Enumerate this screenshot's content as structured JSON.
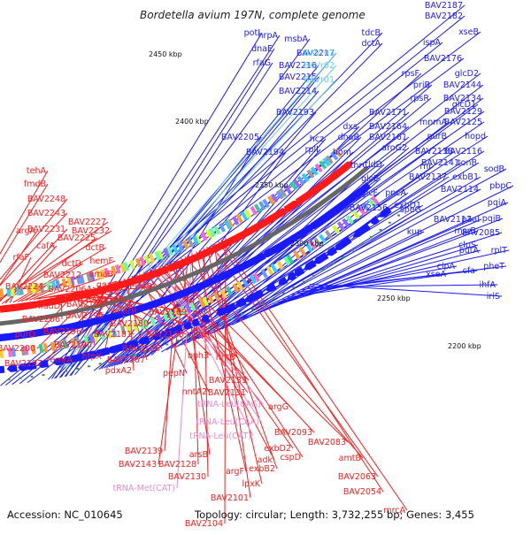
{
  "title": "Bordetella avium 197N, complete genome",
  "footer": {
    "accession": "Accession: NC_010645",
    "topology": "Topology: circular; Length: 3,732,255 bp; Genes: 3,455"
  },
  "colors": {
    "forward": "#1a1aff",
    "reverse": "#ff1a1a",
    "rna": "#66ccee",
    "trna": "#ee88cc",
    "backbone": "#666666",
    "tick": "#3a9a3a"
  },
  "ticks": [
    {
      "label": "2450 kbp"
    },
    {
      "label": "2400 kbp"
    },
    {
      "label": "2350 kbp"
    },
    {
      "label": "2300 kbp"
    },
    {
      "label": "2250 kbp"
    },
    {
      "label": "2200 kbp"
    }
  ],
  "labels_blue": [
    {
      "text": "BAV2187"
    },
    {
      "text": "BAV2182"
    },
    {
      "text": "xseB"
    },
    {
      "text": "ispA"
    },
    {
      "text": "BAV2176"
    },
    {
      "text": "tdcB"
    },
    {
      "text": "dctA"
    },
    {
      "text": "BAV2217"
    },
    {
      "text": "BAV2216"
    },
    {
      "text": "BAV2215"
    },
    {
      "text": "BAV2214"
    },
    {
      "text": "potI"
    },
    {
      "text": "hrpA"
    },
    {
      "text": "msbA"
    },
    {
      "text": "dnaE"
    },
    {
      "text": "rfaG"
    },
    {
      "text": "glcD2"
    },
    {
      "text": "rpsF"
    },
    {
      "text": "priB"
    },
    {
      "text": "rpsR"
    },
    {
      "text": "BAV2144"
    },
    {
      "text": "BAV2134"
    },
    {
      "text": "BAV2129"
    },
    {
      "text": "BAV2125"
    },
    {
      "text": "glcD1"
    },
    {
      "text": "mnmA"
    },
    {
      "text": "hopd"
    },
    {
      "text": "BAV2193"
    },
    {
      "text": "BAV2171"
    },
    {
      "text": "BAV2164"
    },
    {
      "text": "BAV2161"
    },
    {
      "text": "purB"
    },
    {
      "text": "BAV2205"
    },
    {
      "text": "hcz"
    },
    {
      "text": "dxs"
    },
    {
      "text": "BAV2194"
    },
    {
      "text": "rplI"
    },
    {
      "text": "dnaB"
    },
    {
      "text": "hom"
    },
    {
      "text": "BAV2116"
    },
    {
      "text": "BAV2138"
    },
    {
      "text": "aroG2"
    },
    {
      "text": "BAV2141"
    },
    {
      "text": "tonB"
    },
    {
      "text": "sodB"
    },
    {
      "text": "thrC"
    },
    {
      "text": "tldD"
    },
    {
      "text": "rnr"
    },
    {
      "text": "BAV2137"
    },
    {
      "text": "exbB1"
    },
    {
      "text": "glcE"
    },
    {
      "text": "BAV2114"
    },
    {
      "text": "pbpC"
    },
    {
      "text": "glcF"
    },
    {
      "text": "pncA"
    },
    {
      "text": "exbD1"
    },
    {
      "text": "pqiA"
    },
    {
      "text": "BAV2156"
    },
    {
      "text": "speG"
    },
    {
      "text": "BAV2117"
    },
    {
      "text": "paaI"
    },
    {
      "text": "pqiB"
    },
    {
      "text": "kup"
    },
    {
      "text": "msrB"
    },
    {
      "text": "clpS"
    },
    {
      "text": "BAV2085"
    },
    {
      "text": "putA"
    },
    {
      "text": "rplT"
    },
    {
      "text": "xseA"
    },
    {
      "text": "clpA"
    },
    {
      "text": "pheT"
    },
    {
      "text": "cfa"
    },
    {
      "text": "ihfA"
    },
    {
      "text": "irlS"
    }
  ],
  "labels_rna": [
    {
      "text": "BAVr03"
    },
    {
      "text": "BAVr02"
    },
    {
      "text": "BAVr01"
    }
  ],
  "labels_red": [
    {
      "text": "tehA"
    },
    {
      "text": "fmdB"
    },
    {
      "text": "BAV2248"
    },
    {
      "text": "BAV2243"
    },
    {
      "text": "argA"
    },
    {
      "text": "BAV2232"
    },
    {
      "text": "BAV2227"
    },
    {
      "text": "BAV2231"
    },
    {
      "text": "BAV2225"
    },
    {
      "text": "cafA"
    },
    {
      "text": "rfaF"
    },
    {
      "text": "dctB"
    },
    {
      "text": "dctD"
    },
    {
      "text": "hemF"
    },
    {
      "text": "BAV2224"
    },
    {
      "text": "BAV2212"
    },
    {
      "text": "amaB"
    },
    {
      "text": "BAV2206A"
    },
    {
      "text": "goaG1"
    },
    {
      "text": "emrB"
    },
    {
      "text": "nadD"
    },
    {
      "text": "BAV2198"
    },
    {
      "text": "BAV2188"
    },
    {
      "text": "BAV2206"
    },
    {
      "text": "BAV2195"
    },
    {
      "text": "marR"
    },
    {
      "text": "BAV2169"
    },
    {
      "text": "purD"
    },
    {
      "text": "BAV2196"
    },
    {
      "text": "BAV2180"
    },
    {
      "text": "BAV2181"
    },
    {
      "text": "BAV2165"
    },
    {
      "text": "fbp"
    },
    {
      "text": "BAV2200"
    },
    {
      "text": "BAV2190"
    },
    {
      "text": "BAV2166"
    },
    {
      "text": "BAV2197"
    },
    {
      "text": "emrA"
    },
    {
      "text": "htpX"
    },
    {
      "text": "BAV2167"
    },
    {
      "text": "pdxA2"
    },
    {
      "text": "bph3"
    },
    {
      "text": "nntB"
    },
    {
      "text": "pepN"
    },
    {
      "text": "BAV2133"
    },
    {
      "text": "nntA2"
    },
    {
      "text": "BAV2131"
    },
    {
      "text": "argG"
    },
    {
      "text": "BAV2093"
    },
    {
      "text": "exbD2"
    },
    {
      "text": "BAV2083"
    },
    {
      "text": "adk"
    },
    {
      "text": "cspD"
    },
    {
      "text": "BAV2139"
    },
    {
      "text": "arsB"
    },
    {
      "text": "amtB"
    },
    {
      "text": "BAV2143"
    },
    {
      "text": "BAV2128"
    },
    {
      "text": "argF"
    },
    {
      "text": "exbB2"
    },
    {
      "text": "BAV2130"
    },
    {
      "text": "lpxK"
    },
    {
      "text": "BAV2063"
    },
    {
      "text": "BAV2101"
    },
    {
      "text": "BAV2054"
    },
    {
      "text": "mrcA"
    },
    {
      "text": "BAV2104"
    }
  ],
  "labels_trna": [
    {
      "text": "tRNA-Leu(CAG)"
    },
    {
      "text": "tRNA-Leu(CAA)"
    },
    {
      "text": "tRNA-Leu(CAT)"
    },
    {
      "text": "tRNA-Met(CAT)"
    }
  ]
}
